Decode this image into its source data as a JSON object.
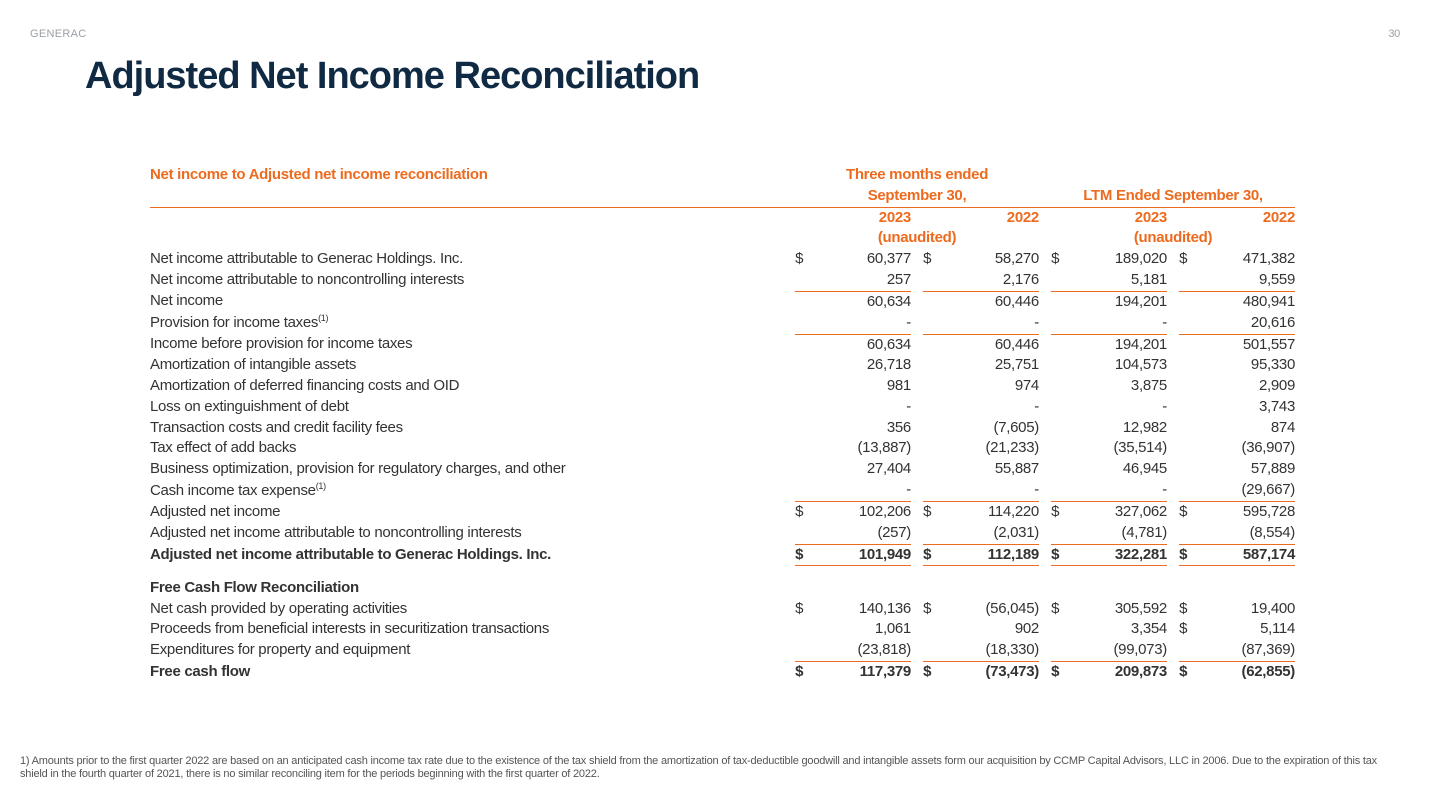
{
  "meta": {
    "brand": "GENERAC",
    "page_number": "30",
    "title": "Adjusted Net Income Reconciliation"
  },
  "colors": {
    "title": "#102a43",
    "accent": "#ec6b1f",
    "muted": "#9aa0a6",
    "text": "#333333"
  },
  "table": {
    "subtitle": "Net income to Adjusted net income reconciliation",
    "period1_header": "Three months ended September 30,",
    "period2_header": "LTM Ended September 30,",
    "years": {
      "p1a": "2023",
      "p1b": "2022",
      "p2a": "2023",
      "p2b": "2022"
    },
    "unaudited": "(unaudited)",
    "rows": [
      {
        "label": "Net income attributable to Generac Holdings. Inc.",
        "v": [
          "60,377",
          "58,270",
          "189,020",
          "471,382"
        ],
        "sym": [
          "$",
          "$",
          "$",
          "$"
        ]
      },
      {
        "label": "Net income attributable to noncontrolling interests",
        "v": [
          "257",
          "2,176",
          "5,181",
          "9,559"
        ],
        "sym": [
          "",
          "",
          "",
          ""
        ]
      },
      {
        "label": "Net income",
        "v": [
          "60,634",
          "60,446",
          "194,201",
          "480,941"
        ],
        "sym": [
          "",
          "",
          "",
          ""
        ],
        "bt": true
      },
      {
        "label": "Provision for income taxes",
        "sup": "(1)",
        "v": [
          "-",
          "-",
          "-",
          "20,616"
        ],
        "sym": [
          "",
          "",
          "",
          ""
        ]
      },
      {
        "label": "Income before provision for income taxes",
        "v": [
          "60,634",
          "60,446",
          "194,201",
          "501,557"
        ],
        "sym": [
          "",
          "",
          "",
          ""
        ],
        "bt": true
      },
      {
        "label": "Amortization of intangible assets",
        "v": [
          "26,718",
          "25,751",
          "104,573",
          "95,330"
        ],
        "sym": [
          "",
          "",
          "",
          ""
        ]
      },
      {
        "label": "Amortization of deferred financing costs and OID",
        "v": [
          "981",
          "974",
          "3,875",
          "2,909"
        ],
        "sym": [
          "",
          "",
          "",
          ""
        ]
      },
      {
        "label": "Loss on extinguishment of debt",
        "v": [
          "-",
          "-",
          "-",
          "3,743"
        ],
        "sym": [
          "",
          "",
          "",
          ""
        ]
      },
      {
        "label": "Transaction costs and credit facility fees",
        "v": [
          "356",
          "(7,605)",
          "12,982",
          "874"
        ],
        "sym": [
          "",
          "",
          "",
          ""
        ]
      },
      {
        "label": "Tax effect of add backs",
        "v": [
          "(13,887)",
          "(21,233)",
          "(35,514)",
          "(36,907)"
        ],
        "sym": [
          "",
          "",
          "",
          ""
        ]
      },
      {
        "label": "Business optimization, provision for regulatory charges, and other",
        "v": [
          "27,404",
          "55,887",
          "46,945",
          "57,889"
        ],
        "sym": [
          "",
          "",
          "",
          ""
        ]
      },
      {
        "label": "Cash income tax expense",
        "sup": "(1)",
        "v": [
          "-",
          "-",
          "-",
          "(29,667)"
        ],
        "sym": [
          "",
          "",
          "",
          ""
        ]
      },
      {
        "label": "Adjusted net income",
        "v": [
          "102,206",
          "114,220",
          "327,062",
          "595,728"
        ],
        "sym": [
          "$",
          "$",
          "$",
          "$"
        ],
        "bt": true
      },
      {
        "label": "Adjusted net income attributable to noncontrolling interests",
        "v": [
          "(257)",
          "(2,031)",
          "(4,781)",
          "(8,554)"
        ],
        "sym": [
          "",
          "",
          "",
          ""
        ]
      },
      {
        "label": "Adjusted net income attributable to Generac Holdings. Inc.",
        "v": [
          "101,949",
          "112,189",
          "322,281",
          "587,174"
        ],
        "sym": [
          "$",
          "$",
          "$",
          "$"
        ],
        "bold": true,
        "bt": true,
        "bb": true
      }
    ],
    "fcf_header": "Free Cash Flow Reconciliation",
    "fcf_rows": [
      {
        "label": "Net cash provided by operating activities",
        "v": [
          "140,136",
          "(56,045)",
          "305,592",
          "19,400"
        ],
        "sym": [
          "$",
          "$",
          "$",
          "$"
        ]
      },
      {
        "label": "Proceeds from beneficial interests in securitization transactions",
        "v": [
          "1,061",
          "902",
          "3,354",
          "5,114"
        ],
        "sym": [
          "",
          "",
          "",
          "$"
        ]
      },
      {
        "label": "Expenditures for property and equipment",
        "v": [
          "(23,818)",
          "(18,330)",
          "(99,073)",
          "(87,369)"
        ],
        "sym": [
          "",
          "",
          "",
          ""
        ]
      },
      {
        "label": "Free cash flow",
        "v": [
          "117,379",
          "(73,473)",
          "209,873",
          "(62,855)"
        ],
        "sym": [
          "$",
          "$",
          "$",
          "$"
        ],
        "bold": true,
        "bt": true
      }
    ]
  },
  "footnote": "1) Amounts prior to the first quarter 2022 are based on an anticipated cash income tax rate due to the existence of the tax shield from the amortization of tax-deductible goodwill and intangible assets form our acquisition by CCMP Capital Advisors, LLC in 2006. Due to the expiration of this tax shield in the fourth quarter of 2021, there is no similar reconciling item for the periods beginning with the first quarter of 2022."
}
